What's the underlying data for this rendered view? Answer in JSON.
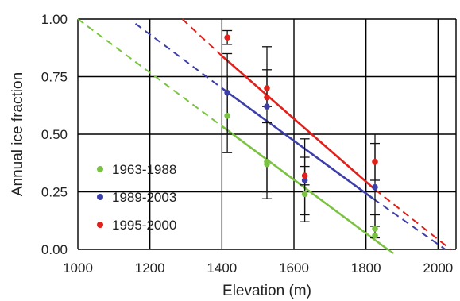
{
  "chart_data": {
    "type": "scatter",
    "xlabel": "Elevation (m)",
    "ylabel": "Annual ice fraction",
    "xlim": [
      1000,
      2050
    ],
    "ylim": [
      0,
      1
    ],
    "x_ticks": [
      1000,
      1200,
      1400,
      1600,
      1800,
      2000
    ],
    "y_ticks": [
      0,
      0.25,
      0.5,
      0.75,
      1
    ],
    "x_tick_labels": [
      "1000",
      "1200",
      "1400",
      "1600",
      "1800",
      "2000"
    ],
    "y_tick_labels": [
      "0.00",
      "0.25",
      "0.50",
      "0.75",
      "1.00"
    ],
    "grid": true,
    "legend_position": "lower-left",
    "series": [
      {
        "name": "1963-1988",
        "color": "#7cc242",
        "points": [
          {
            "x": 1415,
            "y": 0.58,
            "err": [
              0.42,
              0.75
            ]
          },
          {
            "x": 1525,
            "y": 0.38,
            "err": [
              0.22,
              0.55
            ]
          },
          {
            "x": 1525,
            "y": 0.37
          },
          {
            "x": 1630,
            "y": 0.24,
            "err": [
              0.12,
              0.4
            ]
          },
          {
            "x": 1825,
            "y": 0.09,
            "err": [
              0.05,
              0.15
            ]
          },
          {
            "x": 1825,
            "y": 0.06
          }
        ],
        "fit": {
          "x": [
            1400,
            1860
          ],
          "y": [
            0.535,
            0.0
          ]
        },
        "extrapolation": [
          {
            "x": [
              1000,
              1400
            ],
            "y": [
              1.0,
              0.535
            ]
          },
          {
            "x": [
              1860,
              1880
            ],
            "y": [
              0.0,
              -0.02
            ]
          }
        ]
      },
      {
        "name": "1989-2003",
        "color": "#3d3fa8",
        "points": [
          {
            "x": 1415,
            "y": 0.68,
            "err": [
              0.5,
              0.85
            ]
          },
          {
            "x": 1525,
            "y": 0.62,
            "err": [
              0.25,
              0.88
            ]
          },
          {
            "x": 1630,
            "y": 0.3,
            "err": [
              0.15,
              0.48
            ]
          },
          {
            "x": 1825,
            "y": 0.27,
            "err": [
              0.1,
              0.5
            ]
          }
        ],
        "fit": {
          "x": [
            1400,
            1820
          ],
          "y": [
            0.7,
            0.22
          ]
        },
        "extrapolation": [
          {
            "x": [
              1160,
              1400
            ],
            "y": [
              0.98,
              0.7
            ]
          },
          {
            "x": [
              1820,
              2020
            ],
            "y": [
              0.22,
              0.0
            ]
          }
        ]
      },
      {
        "name": "1995-2000",
        "color": "#e0201b",
        "points": [
          {
            "x": 1415,
            "y": 0.92,
            "err": [
              0.89,
              0.95
            ]
          },
          {
            "x": 1525,
            "y": 0.7,
            "err": [
              0.62,
              0.78
            ]
          },
          {
            "x": 1525,
            "y": 0.66
          },
          {
            "x": 1630,
            "y": 0.32,
            "err": [
              0.28,
              0.36
            ]
          },
          {
            "x": 1825,
            "y": 0.38,
            "err": [
              0.3,
              0.46
            ]
          }
        ],
        "fit": {
          "x": [
            1400,
            1825
          ],
          "y": [
            0.84,
            0.26
          ]
        },
        "extrapolation": [
          {
            "x": [
              1290,
              1400
            ],
            "y": [
              1.0,
              0.84
            ]
          },
          {
            "x": [
              1825,
              2035
            ],
            "y": [
              0.26,
              0.0
            ]
          }
        ]
      }
    ]
  }
}
